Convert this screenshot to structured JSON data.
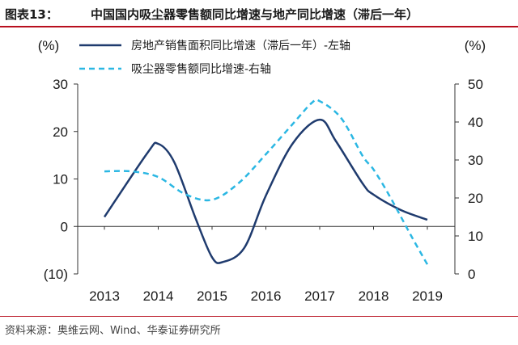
{
  "header": {
    "figure_label": "图表13：",
    "title": "中国国内吸尘器零售额同比增速与地产同比增速（滞后一年）"
  },
  "source": "资料来源：奥维云网、Wind、华泰证券研究所",
  "colors": {
    "accent_rule": "#b80f1e",
    "series_left": "#1f3b6e",
    "series_right": "#2bb7e3"
  },
  "chart_data": {
    "type": "line",
    "x": [
      "2013",
      "2014",
      "2015",
      "2016",
      "2017",
      "2018",
      "2019"
    ],
    "left_axis": {
      "unit": "(%)",
      "ylim": [
        -10,
        30
      ],
      "ticks": [
        -10,
        0,
        10,
        20,
        30
      ],
      "tick_labels": [
        "(10)",
        "0",
        "10",
        "20",
        "30"
      ]
    },
    "right_axis": {
      "unit": "(%)",
      "ylim": [
        0,
        50
      ],
      "ticks": [
        0,
        10,
        20,
        30,
        40,
        50
      ],
      "tick_labels": [
        "0",
        "10",
        "20",
        "30",
        "40",
        "50"
      ]
    },
    "grid": false,
    "legend_position": "top",
    "series": [
      {
        "name": "房地产销售面积同比增速（滞后一年）-左轴",
        "axis": "left",
        "style": "solid",
        "points": [
          [
            2013.0,
            2.0
          ],
          [
            2013.8,
            15.5
          ],
          [
            2014.0,
            17.4
          ],
          [
            2014.3,
            13.5
          ],
          [
            2014.7,
            1.5
          ],
          [
            2015.0,
            -6.5
          ],
          [
            2015.2,
            -7.5
          ],
          [
            2015.6,
            -4.5
          ],
          [
            2016.0,
            6.5
          ],
          [
            2016.5,
            17.5
          ],
          [
            2017.0,
            22.5
          ],
          [
            2017.3,
            18.0
          ],
          [
            2017.8,
            9.0
          ],
          [
            2018.0,
            6.7
          ],
          [
            2018.5,
            3.5
          ],
          [
            2019.0,
            1.4
          ]
        ]
      },
      {
        "name": "吸尘器零售额同比增速-右轴",
        "axis": "right",
        "style": "dashed",
        "points": [
          [
            2013.0,
            27.0
          ],
          [
            2013.5,
            27.0
          ],
          [
            2014.0,
            25.5
          ],
          [
            2014.5,
            21.0
          ],
          [
            2015.0,
            19.5
          ],
          [
            2015.5,
            24.0
          ],
          [
            2016.0,
            31.5
          ],
          [
            2016.5,
            39.5
          ],
          [
            2016.85,
            45.0
          ],
          [
            2017.0,
            45.5
          ],
          [
            2017.4,
            41.0
          ],
          [
            2017.8,
            31.0
          ],
          [
            2018.0,
            27.5
          ],
          [
            2018.3,
            20.5
          ],
          [
            2018.7,
            10.0
          ],
          [
            2019.0,
            2.5
          ]
        ]
      }
    ]
  }
}
